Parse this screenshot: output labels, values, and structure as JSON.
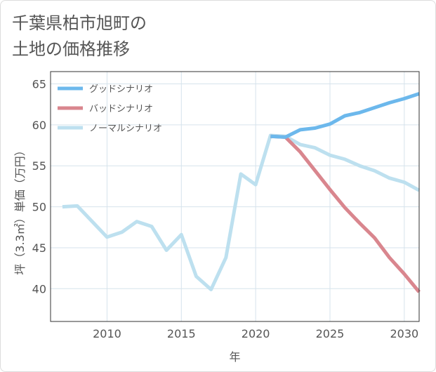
{
  "title_lines": [
    "千葉県柏市旭町の",
    "土地の価格推移"
  ],
  "chart_data": {
    "type": "line",
    "xlabel": "年",
    "ylabel": "坪（3.3㎡）単価（万円）",
    "xlim": [
      2006.2,
      2031.0
    ],
    "ylim": [
      36.0,
      66.5
    ],
    "xticks": [
      2010,
      2015,
      2020,
      2025,
      2030
    ],
    "yticks": [
      40,
      45,
      50,
      55,
      60,
      65
    ],
    "grid": true,
    "legend_position": "top-left",
    "series": [
      {
        "name": "グッドシナリオ",
        "color": "#6cb8ec",
        "x": [
          2021,
          2022,
          2023,
          2024,
          2025,
          2026,
          2027,
          2028,
          2029,
          2030,
          2031
        ],
        "y": [
          58.6,
          58.5,
          59.4,
          59.6,
          60.1,
          61.1,
          61.5,
          62.1,
          62.7,
          63.2,
          63.8
        ]
      },
      {
        "name": "バッドシナリオ",
        "color": "#d9868e",
        "x": [
          2021,
          2022,
          2023,
          2024,
          2025,
          2026,
          2027,
          2028,
          2029,
          2030,
          2031
        ],
        "y": [
          58.6,
          58.5,
          56.7,
          54.4,
          52.1,
          49.9,
          48.0,
          46.2,
          43.8,
          41.8,
          39.6
        ]
      },
      {
        "name": "ノーマルシナリオ",
        "color": "#bde0ef",
        "x": [
          2007,
          2008,
          2009,
          2010,
          2011,
          2012,
          2013,
          2014,
          2015,
          2016,
          2017,
          2018,
          2019,
          2020,
          2021,
          2022,
          2023,
          2024,
          2025,
          2026,
          2027,
          2028,
          2029,
          2030,
          2031
        ],
        "y": [
          50.0,
          50.1,
          48.2,
          46.3,
          46.9,
          48.2,
          47.6,
          44.7,
          46.6,
          41.5,
          39.9,
          43.8,
          54.0,
          52.7,
          58.7,
          58.6,
          57.6,
          57.2,
          56.3,
          55.8,
          55.0,
          54.4,
          53.5,
          53.0,
          52.0
        ]
      }
    ]
  }
}
